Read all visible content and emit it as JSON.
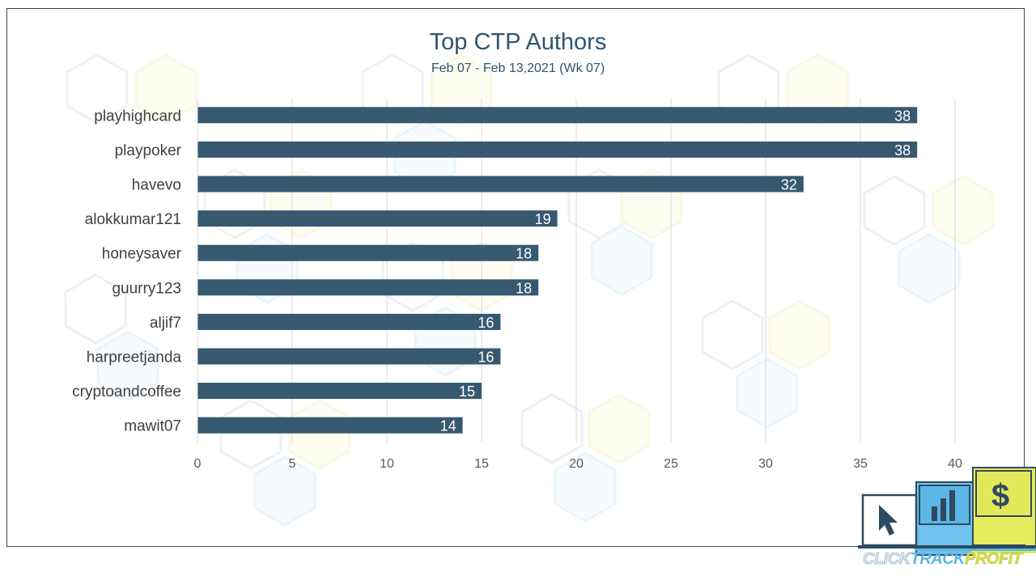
{
  "chart_data": {
    "type": "bar",
    "orientation": "horizontal",
    "title": "Top CTP Authors",
    "subtitle": "Feb 07 - Feb 13,2021 (Wk 07)",
    "categories": [
      "playhighcard",
      "playpoker",
      "havevo",
      "alokkumar121",
      "honeysaver",
      "guurry123",
      "aljif7",
      "harpreetjanda",
      "cryptoandcoffee",
      "mawit07"
    ],
    "values": [
      38,
      38,
      32,
      19,
      18,
      18,
      16,
      16,
      15,
      14
    ],
    "xlim": [
      0,
      40
    ],
    "xticks": [
      0,
      5,
      10,
      15,
      20,
      25,
      30,
      35,
      40
    ],
    "grid": "vertical",
    "data_labels": true,
    "bar_color": "#365970",
    "label_color": "#ffffff"
  },
  "logo": {
    "brand_part1": "CLICK",
    "brand_part2": "TRACK",
    "brand_part3": "PROFIT",
    "icon_names": [
      "cursor-icon",
      "bar-chart-icon",
      "dollar-icon"
    ],
    "dollar_symbol": "$"
  },
  "colors": {
    "text": "#404040",
    "title": "#2f5470",
    "grid": "#d9d9d9",
    "logo_blue": "#5bb6e6",
    "logo_yellow": "#e2e85a",
    "logo_navy": "#2e4a60"
  }
}
